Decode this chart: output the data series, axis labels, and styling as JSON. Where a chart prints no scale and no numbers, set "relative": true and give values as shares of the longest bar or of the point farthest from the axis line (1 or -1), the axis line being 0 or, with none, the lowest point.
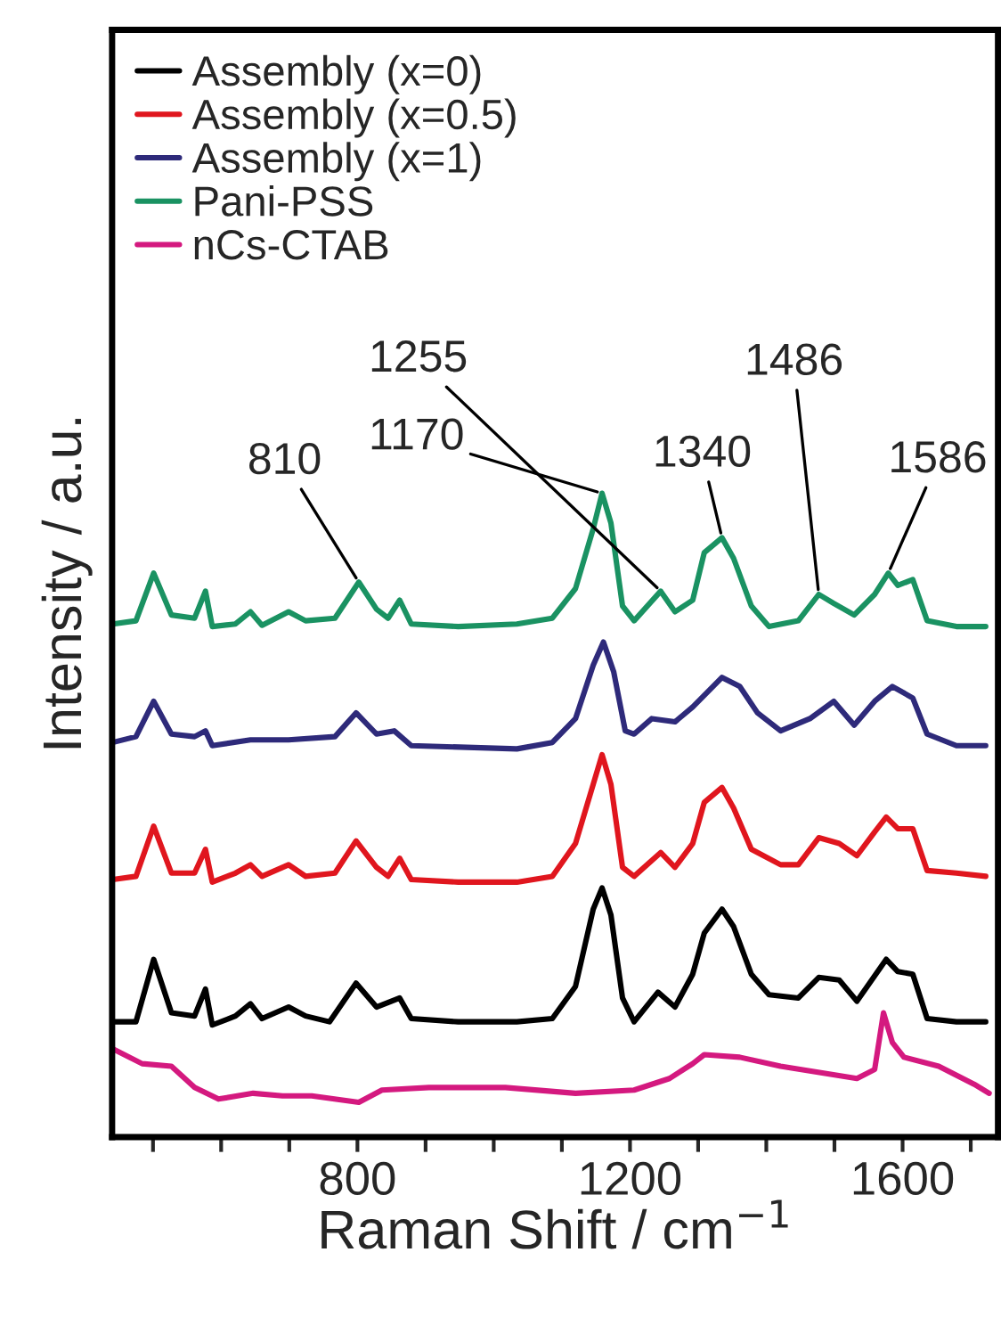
{
  "chart_data": {
    "type": "line",
    "relative": true,
    "xlabel": "Raman Shift / cm$^{−1}$",
    "ylabel": "Intensity / a.u.",
    "legend": "top left",
    "grid": false,
    "tick_labels": "x",
    "xlim": [
      440,
      1740
    ],
    "xticks": [
      {
        "value": 500,
        "label": null
      },
      {
        "value": 600,
        "label": null
      },
      {
        "value": 700,
        "label": null
      },
      800,
      {
        "value": 900,
        "label": null
      },
      {
        "value": 1000,
        "label": null
      },
      {
        "value": 1100,
        "label": null
      },
      1200,
      {
        "value": 1300,
        "label": null
      },
      {
        "value": 1400,
        "label": null
      },
      {
        "value": 1500,
        "label": null
      },
      1600,
      {
        "value": 1700,
        "label": null
      }
    ],
    "series": [
      {
        "name": "Assembly (x=0)",
        "color": "#000000",
        "x": [
          441,
          475,
          501,
          527,
          561,
          577,
          587,
          621,
          643,
          660,
          699,
          724,
          759,
          798,
          828,
          862,
          879,
          948,
          1034,
          1086,
          1120,
          1146,
          1159,
          1172,
          1189,
          1206,
          1241,
          1266,
          1292,
          1309,
          1335,
          1352,
          1378,
          1404,
          1447,
          1477,
          1507,
          1533,
          1576,
          1593,
          1615,
          1636,
          1679,
          1722
        ],
        "values": [
          0.179,
          0.179,
          0.276,
          0.193,
          0.188,
          0.23,
          0.174,
          0.188,
          0.207,
          0.184,
          0.202,
          0.188,
          0.179,
          0.239,
          0.202,
          0.216,
          0.184,
          0.179,
          0.179,
          0.184,
          0.234,
          0.354,
          0.387,
          0.345,
          0.216,
          0.179,
          0.225,
          0.202,
          0.253,
          0.317,
          0.354,
          0.327,
          0.253,
          0.221,
          0.216,
          0.248,
          0.244,
          0.211,
          0.276,
          0.257,
          0.253,
          0.184,
          0.179,
          0.179
        ]
      },
      {
        "name": "Assembly (x=0.5)",
        "color": "#e0161e",
        "x": [
          441,
          475,
          501,
          527,
          561,
          577,
          587,
          621,
          643,
          660,
          699,
          724,
          767,
          798,
          828,
          845,
          862,
          879,
          948,
          1034,
          1086,
          1120,
          1146,
          1159,
          1172,
          1189,
          1206,
          1245,
          1266,
          1292,
          1309,
          1335,
          1352,
          1378,
          1421,
          1447,
          1477,
          1507,
          1533,
          1559,
          1576,
          1593,
          1615,
          1636,
          1679,
          1722
        ],
        "values": [
          0.4,
          0.405,
          0.483,
          0.41,
          0.41,
          0.447,
          0.396,
          0.41,
          0.423,
          0.405,
          0.423,
          0.405,
          0.41,
          0.46,
          0.419,
          0.405,
          0.433,
          0.4,
          0.396,
          0.396,
          0.405,
          0.456,
          0.548,
          0.594,
          0.548,
          0.419,
          0.405,
          0.442,
          0.419,
          0.456,
          0.52,
          0.543,
          0.511,
          0.447,
          0.423,
          0.423,
          0.465,
          0.456,
          0.437,
          0.474,
          0.497,
          0.479,
          0.479,
          0.414,
          0.41,
          0.405
        ]
      },
      {
        "name": "Assembly (x=1)",
        "color": "#2e2a7a",
        "x": [
          441,
          475,
          501,
          527,
          561,
          577,
          587,
          643,
          699,
          767,
          798,
          828,
          854,
          879,
          1034,
          1086,
          1120,
          1146,
          1161,
          1176,
          1193,
          1206,
          1232,
          1266,
          1292,
          1335,
          1361,
          1387,
          1421,
          1464,
          1499,
          1529,
          1559,
          1585,
          1615,
          1636,
          1679,
          1722
        ],
        "values": [
          0.613,
          0.622,
          0.677,
          0.626,
          0.622,
          0.631,
          0.608,
          0.617,
          0.617,
          0.622,
          0.659,
          0.626,
          0.631,
          0.608,
          0.603,
          0.613,
          0.65,
          0.733,
          0.769,
          0.723,
          0.631,
          0.626,
          0.65,
          0.645,
          0.668,
          0.714,
          0.7,
          0.659,
          0.631,
          0.65,
          0.677,
          0.64,
          0.677,
          0.7,
          0.682,
          0.626,
          0.608,
          0.608
        ]
      },
      {
        "name": "Pani-PSS",
        "color": "#1a9262",
        "x": [
          441,
          475,
          501,
          527,
          561,
          577,
          587,
          621,
          643,
          660,
          699,
          724,
          767,
          802,
          828,
          845,
          862,
          879,
          948,
          1034,
          1086,
          1120,
          1146,
          1159,
          1172,
          1189,
          1206,
          1245,
          1266,
          1292,
          1309,
          1335,
          1352,
          1378,
          1404,
          1447,
          1477,
          1499,
          1529,
          1559,
          1579,
          1593,
          1615,
          1636,
          1679,
          1722
        ],
        "values": [
          0.797,
          0.802,
          0.876,
          0.811,
          0.806,
          0.848,
          0.793,
          0.797,
          0.816,
          0.795,
          0.816,
          0.802,
          0.806,
          0.862,
          0.82,
          0.806,
          0.834,
          0.797,
          0.793,
          0.797,
          0.806,
          0.852,
          0.945,
          1.0,
          0.954,
          0.825,
          0.802,
          0.848,
          0.816,
          0.834,
          0.908,
          0.931,
          0.899,
          0.825,
          0.793,
          0.802,
          0.843,
          0.829,
          0.811,
          0.843,
          0.876,
          0.857,
          0.866,
          0.802,
          0.793,
          0.793
        ]
      },
      {
        "name": "nCs-CTAB",
        "color": "#d4197f",
        "x": [
          441,
          484,
          527,
          561,
          596,
          647,
          690,
          733,
          802,
          836,
          905,
          1017,
          1120,
          1206,
          1258,
          1292,
          1309,
          1361,
          1421,
          1533,
          1559,
          1572,
          1585,
          1602,
          1653,
          1705,
          1727
        ],
        "values": [
          0.137,
          0.114,
          0.11,
          0.077,
          0.059,
          0.068,
          0.064,
          0.064,
          0.054,
          0.073,
          0.077,
          0.077,
          0.068,
          0.073,
          0.091,
          0.114,
          0.128,
          0.124,
          0.11,
          0.091,
          0.105,
          0.193,
          0.147,
          0.124,
          0.11,
          0.082,
          0.068
        ]
      }
    ],
    "annotations": [
      {
        "text": "810",
        "x": 802,
        "y": 0.862
      },
      {
        "text": "1170",
        "x": 1159,
        "y": 1.0
      },
      {
        "text": "1255",
        "x": 1245,
        "y": 0.848
      },
      {
        "text": "1340",
        "x": 1335,
        "y": 0.931
      },
      {
        "text": "1486",
        "x": 1477,
        "y": 0.843
      },
      {
        "text": "1586",
        "x": 1579,
        "y": 0.876
      }
    ]
  }
}
